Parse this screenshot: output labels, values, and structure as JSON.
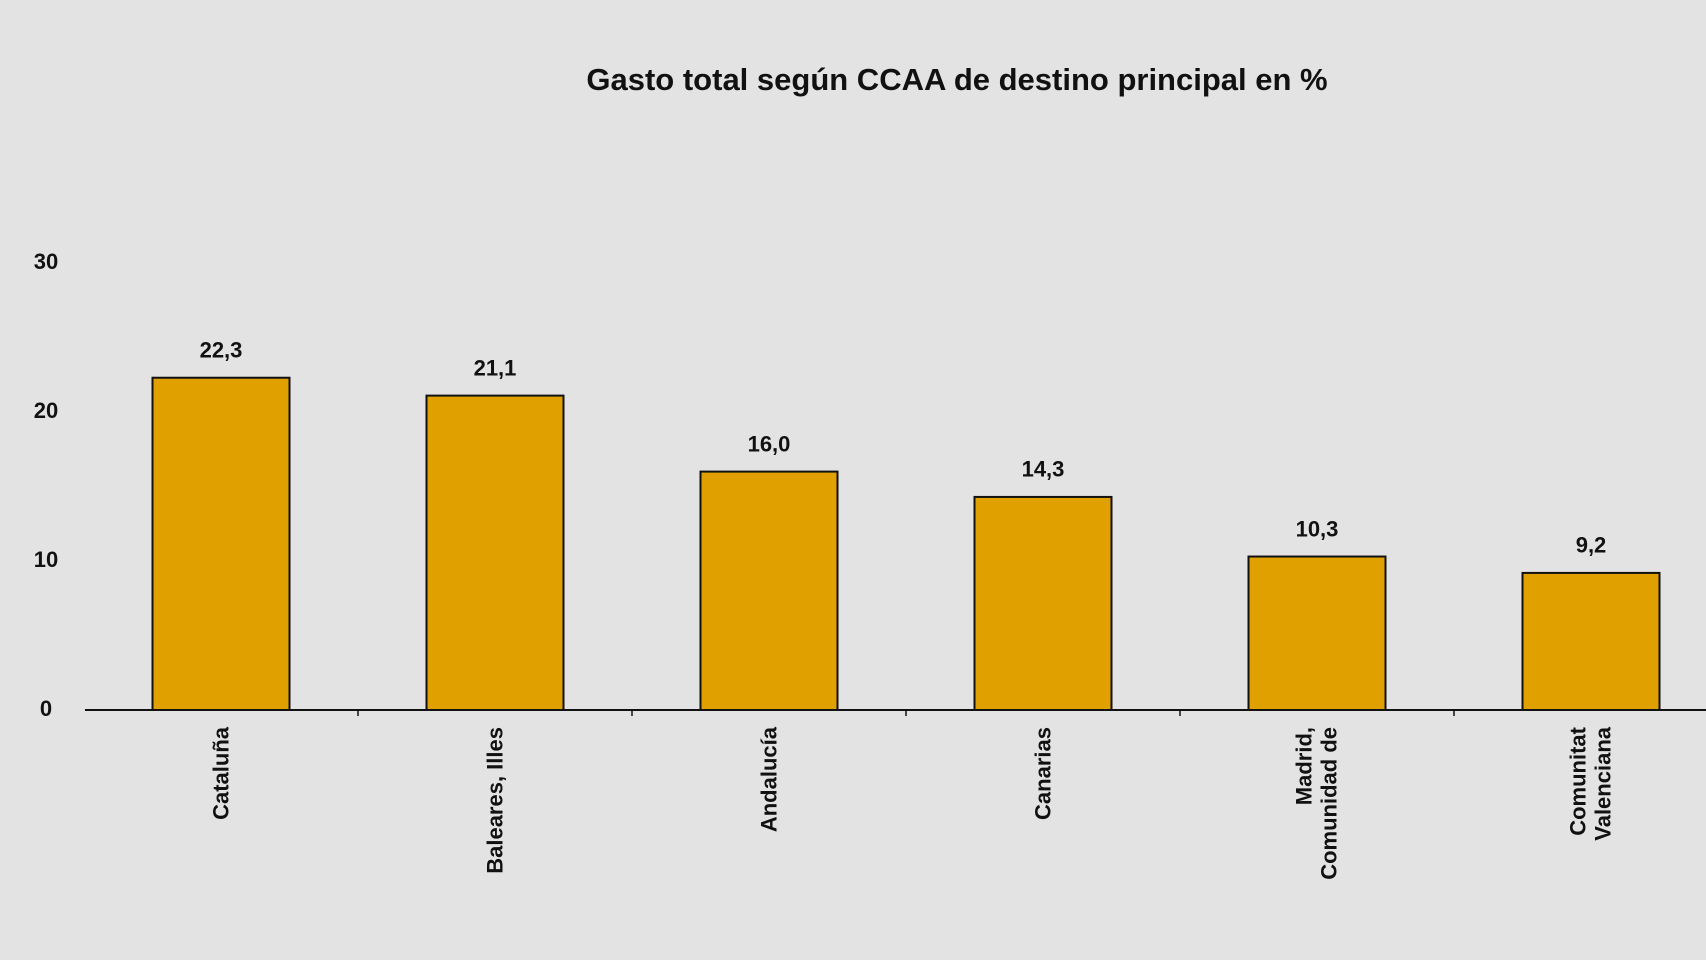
{
  "chart_data": {
    "type": "bar",
    "title": "Gasto total según CCAA de destino principal en %",
    "categories": [
      "Cataluña",
      "Baleares, Illes",
      "Andalucía",
      "Canarias",
      "Madrid, Comunidad de",
      "Comunitat Valenciana"
    ],
    "values": [
      22.3,
      21.1,
      16.0,
      14.3,
      10.3,
      9.2
    ],
    "value_labels": [
      "22,3",
      "21,1",
      "16,0",
      "14,3",
      "10,3",
      "9,2"
    ],
    "color": "#e0a000",
    "ylim": [
      0,
      30
    ],
    "yticks": [
      0,
      10,
      20,
      30
    ],
    "grid": false
  }
}
